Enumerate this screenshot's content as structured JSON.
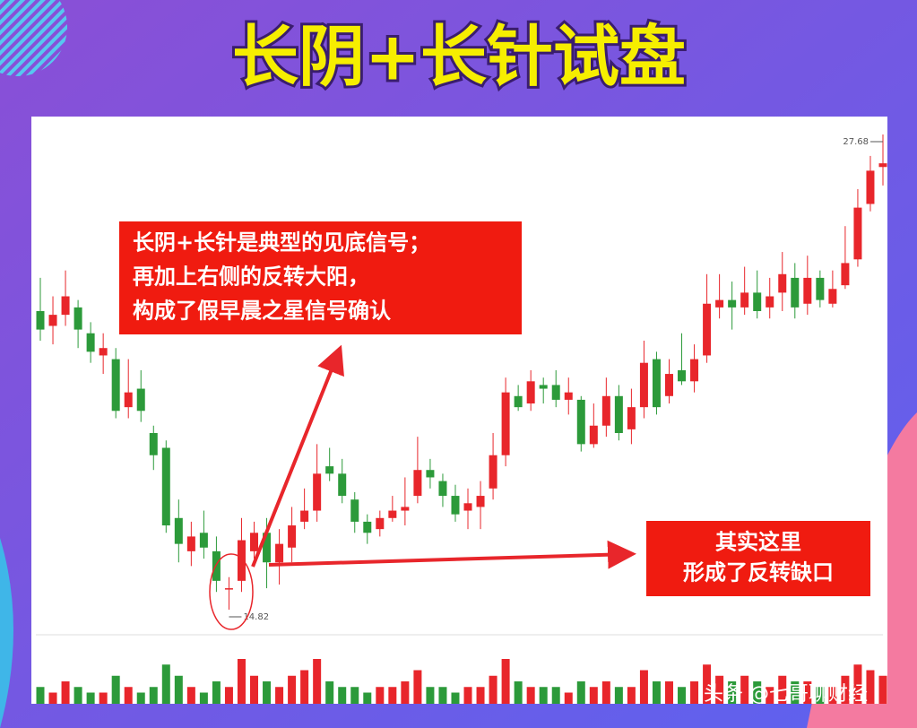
{
  "title": "长阴+长针试盘",
  "chart_data": {
    "type": "candlestick",
    "up_color": "#e8262b",
    "down_color": "#2c9a3a",
    "open": [
      22.9,
      22.5,
      22.8,
      23.0,
      22.3,
      21.7,
      21.6,
      20.3,
      20.8,
      19.6,
      19.2,
      17.3,
      16.4,
      16.9,
      16.4,
      15.4,
      15.6,
      16.4,
      16.9,
      16.1,
      16.5,
      17.2,
      17.5,
      18.7,
      18.5,
      17.8,
      17.2,
      17.0,
      17.3,
      17.5,
      17.9,
      18.6,
      18.3,
      17.9,
      17.5,
      17.6,
      18.1,
      19.0,
      20.6,
      20.4,
      20.9,
      20.9,
      20.5,
      20.5,
      19.3,
      19.8,
      20.6,
      19.7,
      20.3,
      21.6,
      20.6,
      21.3,
      21.0,
      21.7,
      23.0,
      23.2,
      23.0,
      23.4,
      23.0,
      23.4,
      23.8,
      23.1,
      23.8,
      23.1,
      23.6,
      24.3,
      25.8,
      26.8
    ],
    "close": [
      22.4,
      22.8,
      23.3,
      22.4,
      21.8,
      21.9,
      20.2,
      20.7,
      20.2,
      19.0,
      17.1,
      16.6,
      16.8,
      16.5,
      15.6,
      15.4,
      16.7,
      16.9,
      16.1,
      16.6,
      17.1,
      17.5,
      18.5,
      18.5,
      17.9,
      17.2,
      16.9,
      17.3,
      17.5,
      17.6,
      18.6,
      18.4,
      17.9,
      17.4,
      17.7,
      17.9,
      19.0,
      20.7,
      20.3,
      21.0,
      20.8,
      20.5,
      20.7,
      19.3,
      19.8,
      20.6,
      19.6,
      20.3,
      21.5,
      20.3,
      21.2,
      21.0,
      21.6,
      23.1,
      23.2,
      23.0,
      23.4,
      22.9,
      23.3,
      23.9,
      23.0,
      23.8,
      23.2,
      23.5,
      24.2,
      25.7,
      26.7,
      26.9
    ],
    "high": [
      23.8,
      23.3,
      24.0,
      23.2,
      22.6,
      22.3,
      21.9,
      21.6,
      21.3,
      19.8,
      19.4,
      17.8,
      17.2,
      17.5,
      16.8,
      15.7,
      17.3,
      17.2,
      17.3,
      17.0,
      17.6,
      18.1,
      19.3,
      19.2,
      18.9,
      18.0,
      17.4,
      17.5,
      17.9,
      18.4,
      19.5,
      18.9,
      18.5,
      18.2,
      18.1,
      18.3,
      19.6,
      21.1,
      20.9,
      21.3,
      21.1,
      21.3,
      21.1,
      20.6,
      20.4,
      21.1,
      20.9,
      20.8,
      22.1,
      21.8,
      21.6,
      22.3,
      22.0,
      23.9,
      23.9,
      23.7,
      24.1,
      24.0,
      23.8,
      24.5,
      24.2,
      24.4,
      24.0,
      24.0,
      25.2,
      26.2,
      27.1,
      27.68
    ],
    "low": [
      22.1,
      22.0,
      22.5,
      21.9,
      21.5,
      21.2,
      20.0,
      20.0,
      19.9,
      18.6,
      16.9,
      16.1,
      16.0,
      16.2,
      15.3,
      14.82,
      15.3,
      16.2,
      15.4,
      15.5,
      16.1,
      17.0,
      17.2,
      18.3,
      17.7,
      16.9,
      16.6,
      16.8,
      17.2,
      17.1,
      17.7,
      18.1,
      17.6,
      17.2,
      17.0,
      17.0,
      17.8,
      18.7,
      20.2,
      20.2,
      20.4,
      20.3,
      20.1,
      19.1,
      19.2,
      19.5,
      19.4,
      19.3,
      20.0,
      20.1,
      20.4,
      20.9,
      20.7,
      21.5,
      22.7,
      22.4,
      22.8,
      22.7,
      22.7,
      22.9,
      22.7,
      22.8,
      23.0,
      23.0,
      23.5,
      24.1,
      25.6,
      26.3
    ],
    "volume": [
      3,
      2,
      4,
      3,
      2,
      2,
      5,
      3,
      2,
      3,
      7,
      5,
      3,
      2,
      4,
      3,
      8,
      5,
      4,
      3,
      5,
      6,
      8,
      4,
      3,
      3,
      2,
      3,
      3,
      4,
      6,
      3,
      3,
      2,
      3,
      3,
      5,
      8,
      4,
      3,
      3,
      3,
      2,
      4,
      3,
      4,
      3,
      3,
      6,
      4,
      4,
      3,
      4,
      7,
      5,
      4,
      5,
      4,
      3,
      5,
      4,
      4,
      3,
      3,
      5,
      7,
      6,
      5
    ],
    "low_label": 14.82,
    "high_label": 27.68,
    "annotations": [
      {
        "lines": [
          "长阴+长针是典型的见底信号；",
          "再加上右侧的反转大阳，",
          "构成了假早晨之星信号确认"
        ]
      },
      {
        "lines": [
          "其实这里",
          "形成了反转缺口"
        ]
      }
    ]
  },
  "watermark": "头条 @七哥聊财经"
}
